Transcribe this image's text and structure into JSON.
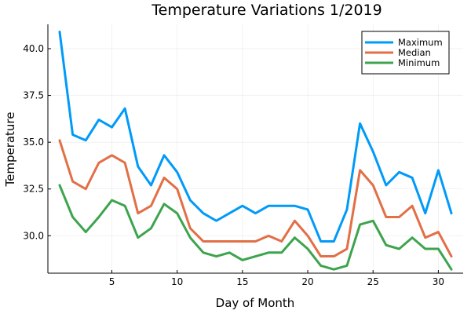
{
  "chart_data": {
    "type": "line",
    "title": "Temperature Variations 1/2019",
    "xlabel": "Day of Month",
    "ylabel": "Temperature",
    "xlim": [
      0.1,
      31.9
    ],
    "ylim": [
      28.0,
      41.3
    ],
    "xticks": [
      5,
      10,
      15,
      20,
      25,
      30
    ],
    "yticks": [
      30.0,
      32.5,
      35.0,
      37.5,
      40.0
    ],
    "xtick_labels": [
      "5",
      "10",
      "15",
      "20",
      "25",
      "30"
    ],
    "ytick_labels": [
      "30.0",
      "32.5",
      "35.0",
      "37.5",
      "40.0"
    ],
    "grid": true,
    "legend_position": "top-right",
    "x": [
      1,
      2,
      3,
      4,
      5,
      6,
      7,
      8,
      9,
      10,
      11,
      12,
      13,
      14,
      15,
      16,
      17,
      18,
      19,
      20,
      21,
      22,
      23,
      24,
      25,
      26,
      27,
      28,
      29,
      30,
      31
    ],
    "series": [
      {
        "name": "Maximum",
        "color": "#009af9",
        "values": [
          40.9,
          35.4,
          35.1,
          36.2,
          35.8,
          36.8,
          33.7,
          32.7,
          34.3,
          33.4,
          31.9,
          31.2,
          30.8,
          31.2,
          31.6,
          31.2,
          31.6,
          31.6,
          31.6,
          31.4,
          29.7,
          29.7,
          31.4,
          36.0,
          34.5,
          32.7,
          33.4,
          33.1,
          31.2,
          33.5,
          31.2
        ]
      },
      {
        "name": "Median",
        "color": "#e26f46",
        "values": [
          35.1,
          32.9,
          32.5,
          33.9,
          34.3,
          33.9,
          31.2,
          31.6,
          33.1,
          32.5,
          30.4,
          29.7,
          29.7,
          29.7,
          29.7,
          29.7,
          30.0,
          29.7,
          30.8,
          30.0,
          28.9,
          28.9,
          29.3,
          33.5,
          32.7,
          31.0,
          31.0,
          31.6,
          29.9,
          30.2,
          28.9
        ]
      },
      {
        "name": "Minimum",
        "color": "#3da44d",
        "values": [
          32.7,
          31.0,
          30.2,
          31.0,
          31.9,
          31.6,
          29.9,
          30.4,
          31.7,
          31.2,
          29.9,
          29.1,
          28.9,
          29.1,
          28.7,
          28.9,
          29.1,
          29.1,
          29.9,
          29.3,
          28.4,
          28.2,
          28.4,
          30.6,
          30.8,
          29.5,
          29.3,
          29.9,
          29.3,
          29.3,
          28.2
        ]
      }
    ]
  }
}
